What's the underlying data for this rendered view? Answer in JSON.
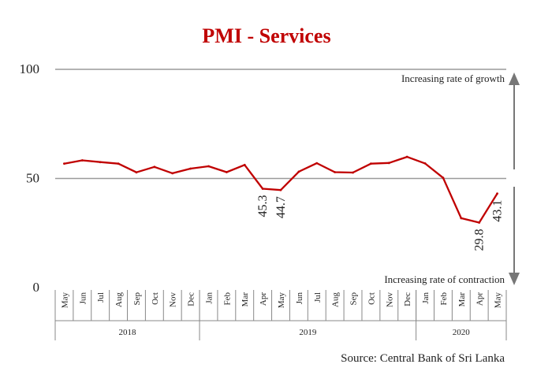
{
  "chart_data": {
    "type": "line",
    "title": "PMI - Services",
    "ylim": [
      0,
      100
    ],
    "yticks": [
      0,
      50,
      100
    ],
    "reference_lines": [
      50,
      100
    ],
    "categories": [
      "May",
      "Jun",
      "Jul",
      "Aug",
      "Sep",
      "Oct",
      "Nov",
      "Dec",
      "Jan",
      "Feb",
      "Mar",
      "Apr",
      "May",
      "Jun",
      "Jul",
      "Aug",
      "Sep",
      "Oct",
      "Nov",
      "Dec",
      "Jan",
      "Feb",
      "Mar",
      "Apr",
      "May"
    ],
    "year_groups": [
      {
        "label": "2018",
        "start": 0,
        "end": 7
      },
      {
        "label": "2019",
        "start": 8,
        "end": 19
      },
      {
        "label": "2020",
        "start": 20,
        "end": 24
      }
    ],
    "series": [
      {
        "name": "PMI - Services",
        "color": "#c00000",
        "values": [
          56.8,
          58.3,
          57.5,
          56.8,
          52.8,
          55.3,
          52.4,
          54.5,
          55.6,
          52.9,
          56.2,
          45.3,
          44.7,
          53.1,
          57.0,
          52.9,
          52.7,
          56.8,
          57.1,
          59.9,
          56.9,
          50.3,
          31.8,
          29.8,
          43.1
        ]
      }
    ],
    "data_labels": [
      {
        "index": 11,
        "text": "45.3"
      },
      {
        "index": 12,
        "text": "44.7"
      },
      {
        "index": 23,
        "text": "29.8"
      },
      {
        "index": 24,
        "text": "43.1"
      }
    ],
    "annotations": {
      "top": "Increasing rate of growth",
      "bottom": "Increasing rate of contraction"
    },
    "source": "Source: Central Bank of Sri Lanka"
  }
}
